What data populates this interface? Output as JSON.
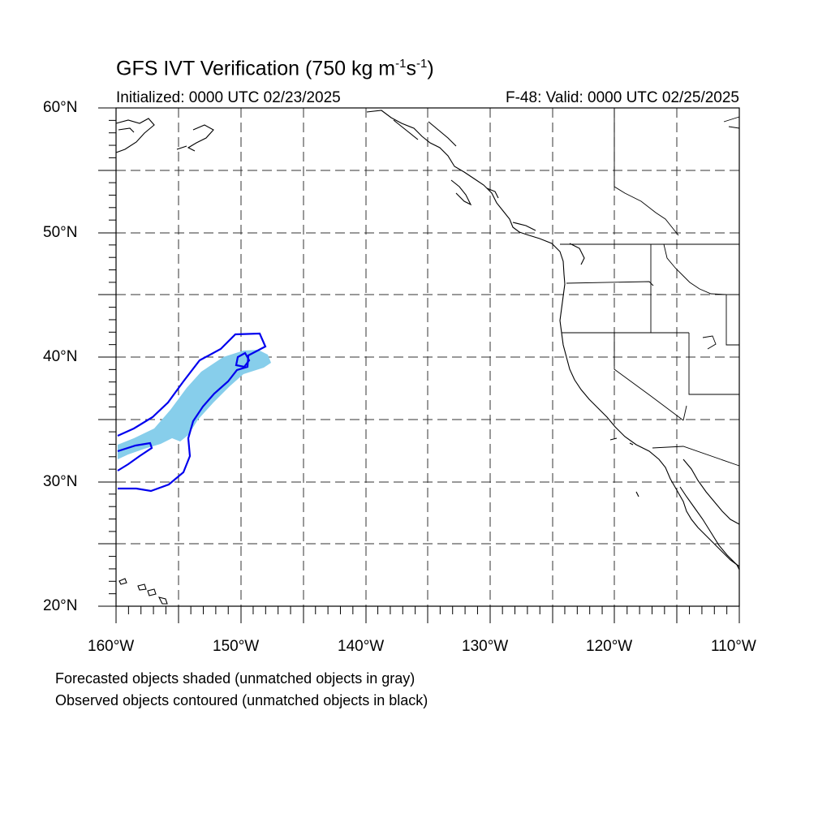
{
  "title_main": "GFS IVT Verification (750 kg m",
  "title_exp1": "-1",
  "title_mid": "s",
  "title_exp2": "-1",
  "title_end": ")",
  "subtitle_left": "Initialized: 0000 UTC 02/23/2025",
  "subtitle_right": "F-48: Valid: 0000 UTC 02/25/2025",
  "lat_labels": [
    "60°N",
    "50°N",
    "40°N",
    "30°N",
    "20°N"
  ],
  "lon_labels": [
    "160°W",
    "150°W",
    "140°W",
    "130°W",
    "120°W",
    "110°W"
  ],
  "notes": [
    "Forecasted objects shaded (unmatched objects in gray)",
    "Observed objects contoured (unmatched objects in black)"
  ],
  "colors": {
    "forecast_fill": "#87ceeb",
    "observed_contour": "#0000ee",
    "coastline": "#000000"
  },
  "map_extent": {
    "lon": [
      -160,
      -110
    ],
    "lat": [
      20,
      60
    ]
  }
}
